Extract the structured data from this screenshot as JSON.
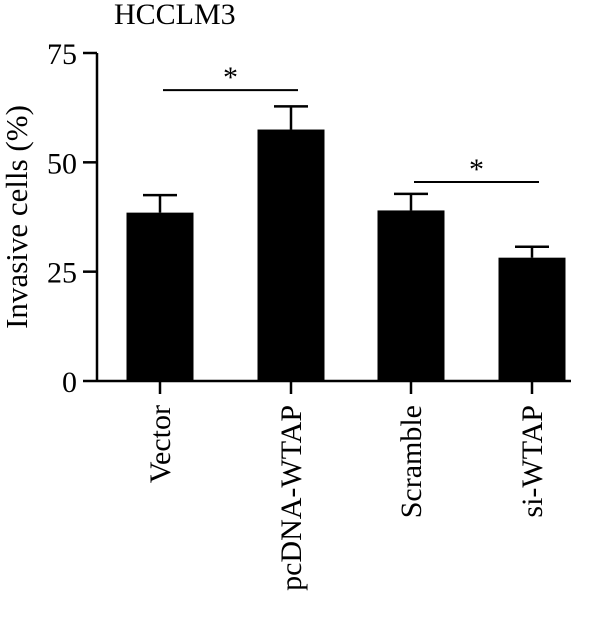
{
  "chart_data": {
    "type": "bar",
    "title": "HCCLM3",
    "xlabel": "",
    "ylabel": "Invasive cells (%)",
    "ylim": [
      0,
      75
    ],
    "yticks": [
      0,
      25,
      50,
      75
    ],
    "grid": false,
    "legend": "none",
    "bar_color": "#000000",
    "categories": [
      "Vector",
      "pcDNA-WTAP",
      "Scramble",
      "si-WTAP"
    ],
    "values": [
      38.5,
      57.5,
      39,
      28.2
    ],
    "errors": [
      4,
      5.3,
      3.8,
      2.5
    ],
    "significance": [
      {
        "from": 0,
        "to": 1,
        "label": "*",
        "y": 66.5
      },
      {
        "from": 2,
        "to": 3,
        "label": "*",
        "y": 45.5
      }
    ]
  }
}
